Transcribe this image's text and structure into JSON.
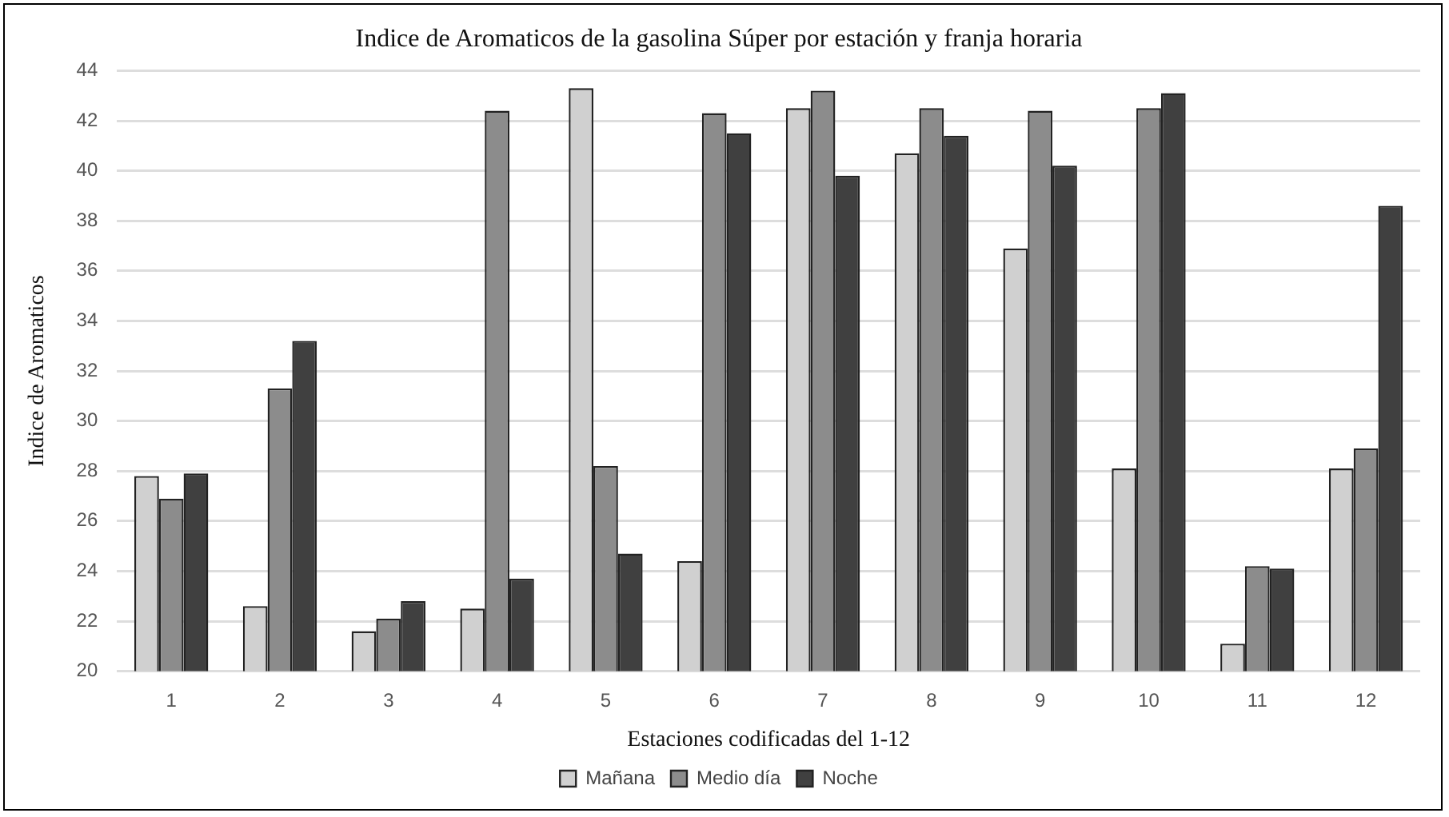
{
  "chart_data": {
    "type": "bar",
    "title": "Indice de Aromaticos de la gasolina Súper por estación y franja horaria",
    "xlabel": "Estaciones codificadas del 1-12",
    "ylabel": "Indice de Aromaticos",
    "categories": [
      "1",
      "2",
      "3",
      "4",
      "5",
      "6",
      "7",
      "8",
      "9",
      "10",
      "11",
      "12"
    ],
    "series": [
      {
        "name": "Mañana",
        "color": "#d0d0d0",
        "values": [
          27.8,
          22.6,
          21.6,
          22.5,
          43.3,
          24.4,
          42.5,
          40.7,
          36.9,
          28.1,
          21.1,
          28.1
        ]
      },
      {
        "name": "Medio día",
        "color": "#8c8c8c",
        "values": [
          26.9,
          31.3,
          22.1,
          42.4,
          28.2,
          42.3,
          43.2,
          42.5,
          42.4,
          42.5,
          24.2,
          28.9
        ]
      },
      {
        "name": "Noche",
        "color": "#404040",
        "values": [
          27.9,
          33.2,
          22.8,
          23.7,
          24.7,
          41.5,
          39.8,
          41.4,
          40.2,
          43.1,
          24.1,
          38.6
        ]
      }
    ],
    "ylim": [
      20,
      44
    ],
    "yticks": [
      20,
      22,
      24,
      26,
      28,
      30,
      32,
      34,
      36,
      38,
      40,
      42,
      44
    ],
    "grid": "y",
    "legend": "bottom"
  }
}
